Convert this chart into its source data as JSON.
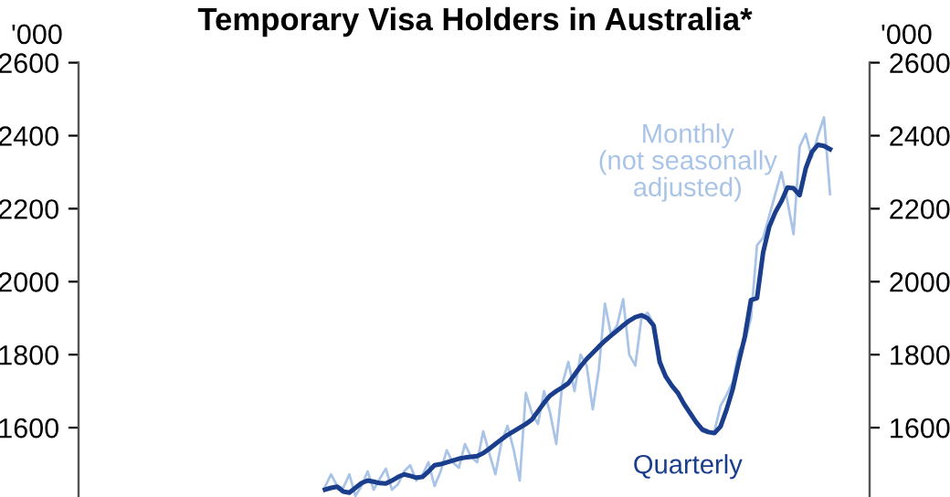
{
  "chart_data": {
    "type": "line",
    "title": "Temporary Visa Holders in Australia*",
    "annotations": [
      "'000",
      "'000"
    ],
    "categories": [
      null,
      null,
      null,
      null,
      null,
      null,
      null,
      null,
      null,
      null,
      null,
      null,
      null,
      null,
      null,
      null,
      null,
      null,
      null,
      null,
      null,
      null,
      null,
      null,
      null,
      null,
      null,
      null,
      null,
      null,
      null,
      null,
      null,
      null,
      null,
      null,
      null,
      null,
      null,
      null,
      null,
      null,
      null,
      null,
      null,
      null,
      null,
      null,
      null,
      null,
      null,
      null,
      null,
      null,
      null,
      null,
      null,
      null,
      null,
      null,
      null,
      null,
      null,
      null,
      null,
      null,
      null,
      null,
      null,
      null,
      null,
      null,
      null,
      null,
      null,
      null,
      null,
      null,
      null,
      null,
      null,
      null,
      null,
      null,
      null,
      null,
      null,
      null,
      null,
      null,
      null,
      null,
      null,
      null,
      null,
      null,
      null,
      null,
      null,
      null,
      null,
      null,
      null,
      null,
      null,
      null,
      null,
      null,
      null,
      null,
      null,
      null,
      null,
      null,
      null,
      null,
      null,
      null,
      null,
      null,
      null,
      null,
      null,
      null,
      null,
      null,
      null,
      null,
      null,
      null
    ],
    "series": [
      {
        "name": "Monthly\n(not seasonally\nadjusted)",
        "color": "#a9c4e6",
        "values": [
          null,
          null,
          null,
          null,
          null,
          null,
          null,
          null,
          null,
          null,
          null,
          null,
          null,
          null,
          null,
          null,
          null,
          null,
          null,
          null,
          null,
          null,
          null,
          null,
          null,
          null,
          null,
          null,
          null,
          null,
          null,
          null,
          null,
          null,
          null,
          null,
          null,
          null,
          null,
          null,
          1438,
          1472,
          1440,
          1435,
          1472,
          1413,
          1440,
          1480,
          1430,
          1460,
          1488,
          1430,
          1445,
          1480,
          1497,
          1455,
          1470,
          1505,
          1440,
          1480,
          1538,
          1505,
          1490,
          1555,
          1520,
          1505,
          1590,
          1530,
          1472,
          1560,
          1605,
          1540,
          1455,
          1695,
          1640,
          1610,
          1700,
          1640,
          1555,
          1720,
          1780,
          1700,
          1800,
          1770,
          1650,
          1760,
          1940,
          1855,
          1880,
          1952,
          1800,
          1770,
          1900,
          1915,
          1885,
          1790,
          1735,
          1712,
          1690,
          1660,
          1635,
          1612,
          1590,
          1585,
          1590,
          1660,
          1690,
          1725,
          1810,
          1835,
          1900,
          2100,
          2120,
          2180,
          2240,
          2300,
          2220,
          2130,
          2370,
          2405,
          2340,
          2400,
          2450,
          2240,
          null,
          null,
          null,
          null,
          null,
          null
        ]
      },
      {
        "name": "Quarterly",
        "color": "#1a3e8c",
        "values": [
          null,
          null,
          null,
          null,
          null,
          null,
          null,
          null,
          null,
          null,
          null,
          null,
          null,
          null,
          null,
          null,
          null,
          null,
          null,
          null,
          null,
          null,
          null,
          null,
          null,
          null,
          null,
          null,
          null,
          null,
          null,
          null,
          null,
          null,
          null,
          null,
          null,
          null,
          null,
          null,
          1430,
          1435,
          1438,
          1425,
          1422,
          1435,
          1448,
          1455,
          1452,
          1448,
          1447,
          1455,
          1465,
          1472,
          1468,
          1463,
          1465,
          1480,
          1497,
          1500,
          1505,
          1510,
          1515,
          1518,
          1520,
          1522,
          1530,
          1542,
          1555,
          1568,
          1580,
          1590,
          1600,
          1610,
          1622,
          1645,
          1668,
          1688,
          1700,
          1710,
          1722,
          1745,
          1768,
          1788,
          1805,
          1822,
          1838,
          1852,
          1866,
          1880,
          1893,
          1903,
          1908,
          1900,
          1880,
          1780,
          1740,
          1715,
          1695,
          1665,
          1640,
          1615,
          1595,
          1588,
          1585,
          1603,
          1650,
          1705,
          1780,
          1850,
          1950,
          1955,
          2080,
          2150,
          2190,
          2220,
          2258,
          2256,
          2237,
          2310,
          2355,
          2375,
          2372,
          2363,
          null,
          null,
          null,
          null,
          null,
          null
        ]
      }
    ],
    "ylim": [
      1410,
      2600
    ],
    "yticks": [
      1600,
      1800,
      2000,
      2200,
      2400,
      2600
    ],
    "y2lim": [
      1410,
      2600
    ],
    "y2ticks": [
      1600,
      1800,
      2000,
      2200,
      2400,
      2600
    ],
    "tick_labels": "y",
    "grid": false,
    "legend": false
  }
}
